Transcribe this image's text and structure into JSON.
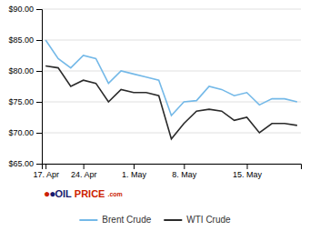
{
  "chart_data": {
    "type": "line",
    "categories": [
      "17. Apr",
      null,
      null,
      "24. Apr",
      null,
      null,
      null,
      "1. May",
      null,
      null,
      null,
      "8. May",
      null,
      null,
      null,
      null,
      "15. May",
      null,
      null,
      null,
      null
    ],
    "series": [
      {
        "name": "Brent Crude",
        "color": "#74b9e8",
        "values": [
          85.0,
          82.0,
          80.5,
          82.5,
          82.0,
          78.0,
          80.0,
          79.5,
          79.0,
          78.5,
          72.8,
          75.0,
          75.2,
          77.5,
          77.0,
          76.0,
          76.5,
          74.5,
          75.5,
          75.5,
          75.0
        ]
      },
      {
        "name": "WTI Crude",
        "color": "#2b2b2b",
        "values": [
          80.8,
          80.5,
          77.5,
          78.5,
          78.0,
          75.0,
          77.0,
          76.5,
          76.5,
          76.0,
          69.0,
          71.5,
          73.5,
          73.8,
          73.5,
          72.0,
          72.5,
          70.0,
          71.5,
          71.5,
          71.2
        ]
      }
    ],
    "ylim": [
      65.0,
      90.0
    ],
    "yticks": [
      {
        "value": 65.0,
        "label": "$65.00"
      },
      {
        "value": 70.0,
        "label": "$70.00"
      },
      {
        "value": 75.0,
        "label": "$75.00"
      },
      {
        "value": 80.0,
        "label": "$80.00"
      },
      {
        "value": 85.0,
        "label": "$85.00"
      },
      {
        "value": 90.0,
        "label": "$90.00"
      }
    ],
    "grid": true,
    "legend": "bottom",
    "annotations": [
      {
        "text": "●",
        "color": "#cc2200"
      },
      {
        "text": "●",
        "color": "#1a1a6e"
      },
      {
        "text": "OIL",
        "color": "#1a1a6e"
      },
      {
        "text": "PRICE",
        "color": "#cc2200"
      },
      {
        "text": ".com",
        "color": "#cc2200"
      }
    ]
  }
}
